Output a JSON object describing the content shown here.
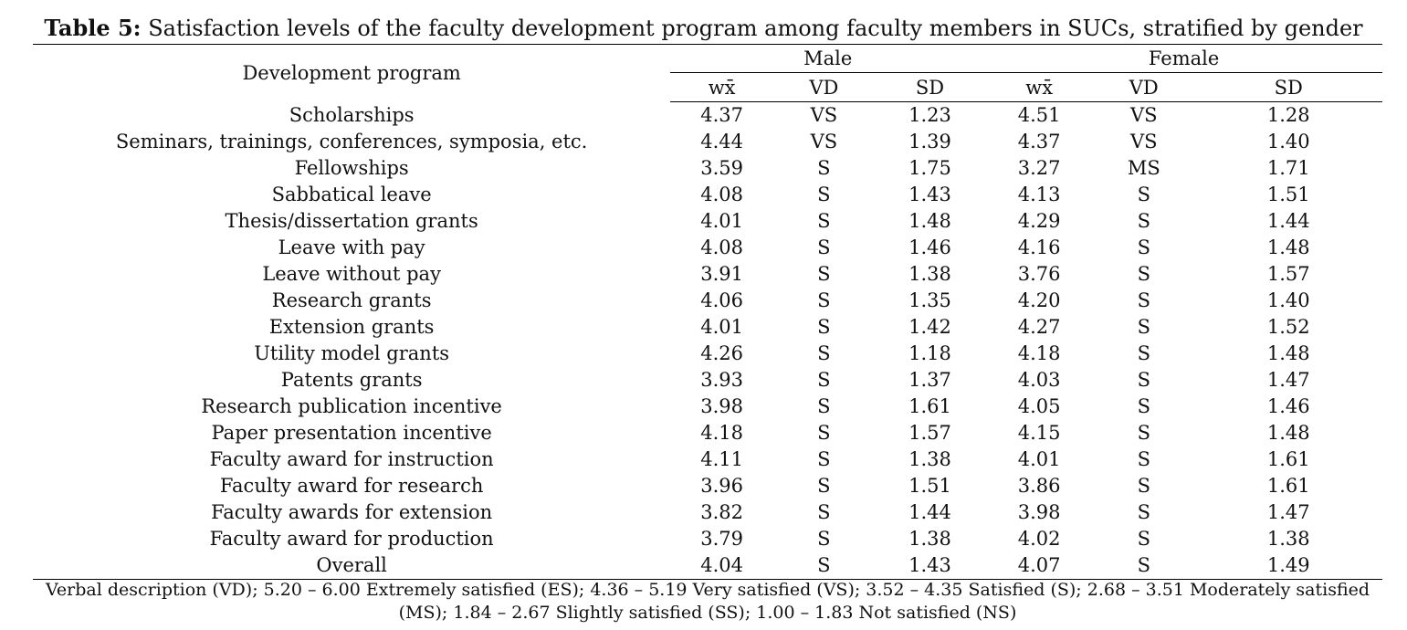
{
  "caption": {
    "label": "Table 5:",
    "text": "Satisfaction levels of the faculty development program among faculty members in SUCs, stratified by gender"
  },
  "table": {
    "row_header": "Development program",
    "groups": [
      "Male",
      "Female"
    ],
    "subheaders": [
      "wx̄",
      "VD",
      "SD"
    ],
    "rows": [
      [
        "Scholarships",
        "4.37",
        "VS",
        "1.23",
        "4.51",
        "VS",
        "1.28"
      ],
      [
        "Seminars, trainings, conferences, symposia, etc.",
        "4.44",
        "VS",
        "1.39",
        "4.37",
        "VS",
        "1.40"
      ],
      [
        "Fellowships",
        "3.59",
        "S",
        "1.75",
        "3.27",
        "MS",
        "1.71"
      ],
      [
        "Sabbatical leave",
        "4.08",
        "S",
        "1.43",
        "4.13",
        "S",
        "1.51"
      ],
      [
        "Thesis/dissertation grants",
        "4.01",
        "S",
        "1.48",
        "4.29",
        "S",
        "1.44"
      ],
      [
        "Leave with pay",
        "4.08",
        "S",
        "1.46",
        "4.16",
        "S",
        "1.48"
      ],
      [
        "Leave without pay",
        "3.91",
        "S",
        "1.38",
        "3.76",
        "S",
        "1.57"
      ],
      [
        "Research grants",
        "4.06",
        "S",
        "1.35",
        "4.20",
        "S",
        "1.40"
      ],
      [
        "Extension grants",
        "4.01",
        "S",
        "1.42",
        "4.27",
        "S",
        "1.52"
      ],
      [
        "Utility model grants",
        "4.26",
        "S",
        "1.18",
        "4.18",
        "S",
        "1.48"
      ],
      [
        "Patents grants",
        "3.93",
        "S",
        "1.37",
        "4.03",
        "S",
        "1.47"
      ],
      [
        "Research publication incentive",
        "3.98",
        "S",
        "1.61",
        "4.05",
        "S",
        "1.46"
      ],
      [
        "Paper presentation incentive",
        "4.18",
        "S",
        "1.57",
        "4.15",
        "S",
        "1.48"
      ],
      [
        "Faculty award for instruction",
        "4.11",
        "S",
        "1.38",
        "4.01",
        "S",
        "1.61"
      ],
      [
        "Faculty award for research",
        "3.96",
        "S",
        "1.51",
        "3.86",
        "S",
        "1.61"
      ],
      [
        "Faculty awards for extension",
        "3.82",
        "S",
        "1.44",
        "3.98",
        "S",
        "1.47"
      ],
      [
        "Faculty award for production",
        "3.79",
        "S",
        "1.38",
        "4.02",
        "S",
        "1.38"
      ],
      [
        "Overall",
        "4.04",
        "S",
        "1.43",
        "4.07",
        "S",
        "1.49"
      ]
    ]
  },
  "footnote": "Verbal description (VD); 5.20 – 6.00 Extremely satisfied (ES); 4.36 – 5.19 Very satisfied (VS); 3.52 – 4.35 Satisfied (S); 2.68 – 3.51 Moderately satisfied (MS); 1.84 – 2.67 Slightly satisfied (SS); 1.00 – 1.83 Not satisfied (NS)"
}
